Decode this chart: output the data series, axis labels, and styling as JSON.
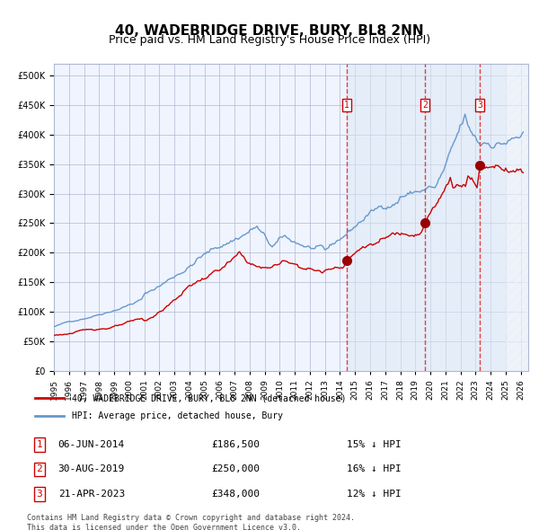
{
  "title": "40, WADEBRIDGE DRIVE, BURY, BL8 2NN",
  "subtitle": "Price paid vs. HM Land Registry's House Price Index (HPI)",
  "legend_red": "40, WADEBRIDGE DRIVE, BURY, BL8 2NN (detached house)",
  "legend_blue": "HPI: Average price, detached house, Bury",
  "footer1": "Contains HM Land Registry data © Crown copyright and database right 2024.",
  "footer2": "This data is licensed under the Open Government Licence v3.0.",
  "sales": [
    {
      "label": "1",
      "date": "06-JUN-2014",
      "price": 186500,
      "pct": "15%",
      "dir": "↓"
    },
    {
      "label": "2",
      "date": "30-AUG-2019",
      "price": 250000,
      "pct": "16%",
      "dir": "↓"
    },
    {
      "label": "3",
      "date": "21-APR-2023",
      "price": 348000,
      "pct": "12%",
      "dir": "↓"
    }
  ],
  "sale_dates_decimal": [
    2014.43,
    2019.66,
    2023.3
  ],
  "ylim": [
    0,
    520000
  ],
  "yticks": [
    0,
    50000,
    100000,
    150000,
    200000,
    250000,
    300000,
    350000,
    400000,
    450000,
    500000
  ],
  "xlim_start": 1995.0,
  "xlim_end": 2026.5,
  "bg_color": "#f0f4ff",
  "hatch_color": "#c8d8f0",
  "grid_color": "#b0b8d0",
  "red_line_color": "#cc0000",
  "blue_line_color": "#6699cc",
  "vline_color": "#dd4444",
  "shade_start": 2014.43,
  "shade_end": 2026.5,
  "title_fontsize": 11,
  "subtitle_fontsize": 9,
  "axis_fontsize": 8
}
